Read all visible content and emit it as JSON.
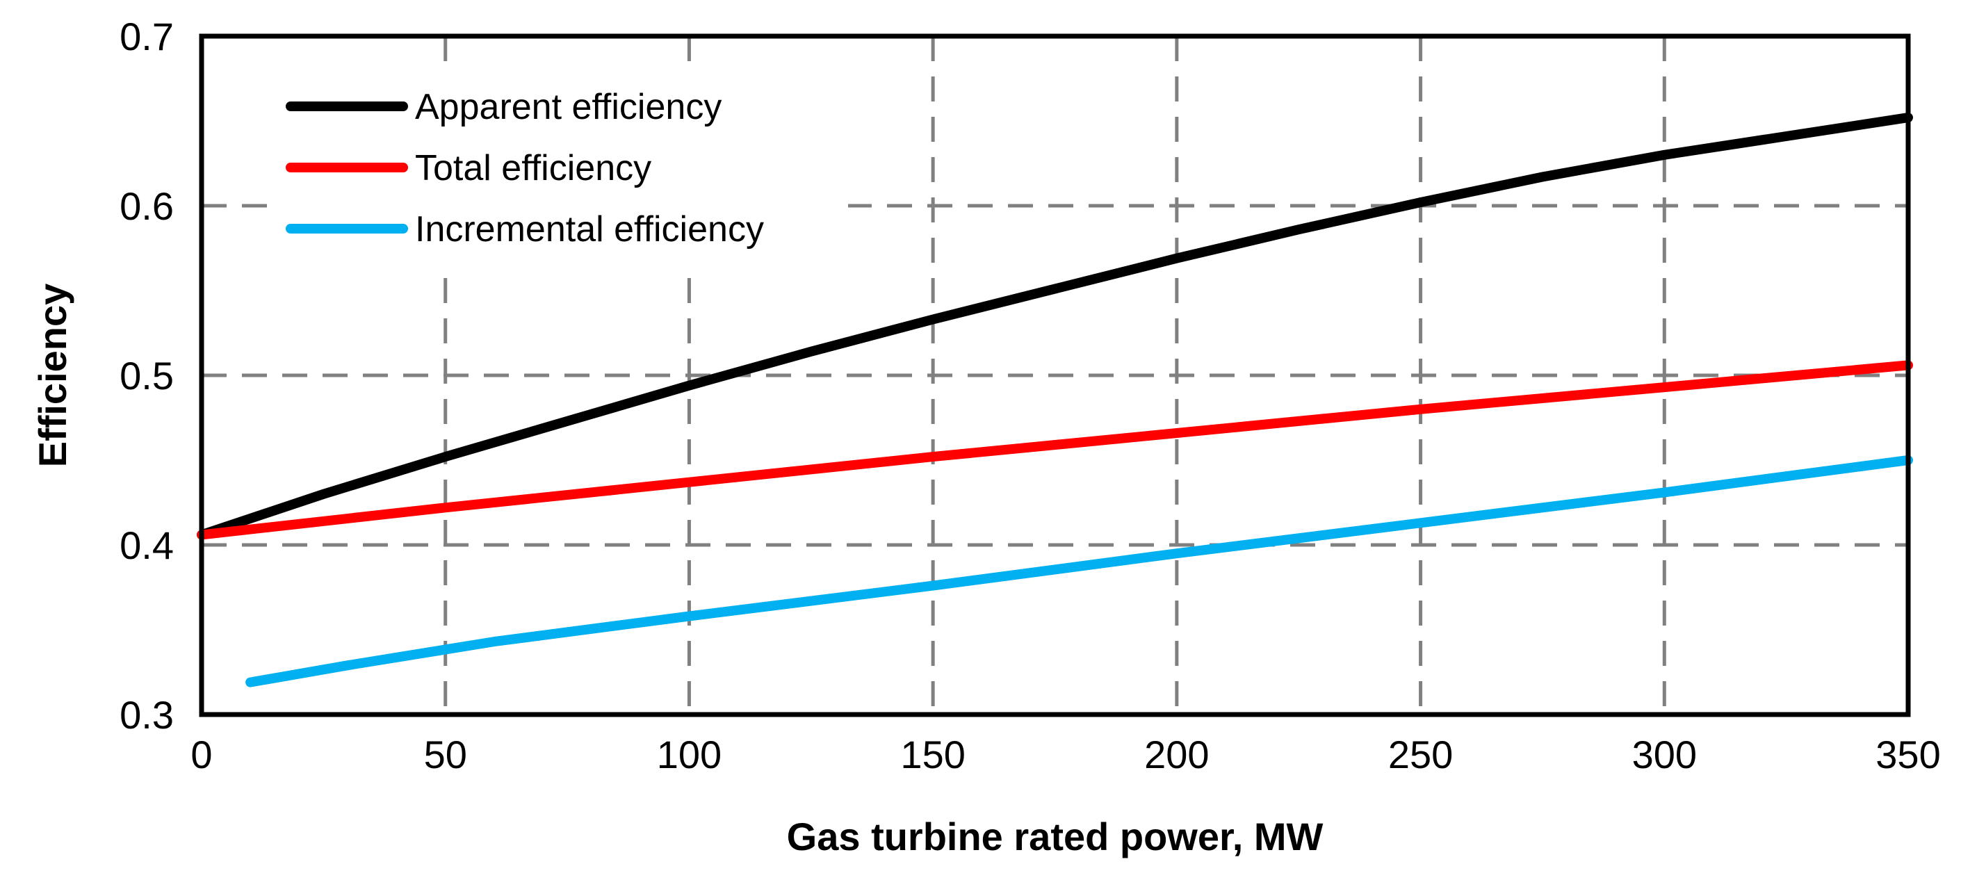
{
  "chart_data": {
    "type": "line",
    "title": "",
    "xlabel": "Gas turbine rated power, MW",
    "ylabel": "Efficiency",
    "xlim": [
      0,
      350
    ],
    "ylim": [
      0.3,
      0.7
    ],
    "x_ticks": [
      0,
      50,
      100,
      150,
      200,
      250,
      300,
      350
    ],
    "y_ticks": [
      0.3,
      0.4,
      0.5,
      0.6,
      0.7
    ],
    "x_tick_labels": [
      "0",
      "50",
      "100",
      "150",
      "200",
      "250",
      "300",
      "350"
    ],
    "y_tick_labels": [
      "0.3",
      "0.4",
      "0.5",
      "0.6",
      "0.7"
    ],
    "grid": "dashed",
    "legend_position": "top-left",
    "series": [
      {
        "name": "Apparent efficiency",
        "color": "#000000",
        "x": [
          0,
          25,
          50,
          75,
          100,
          125,
          150,
          175,
          200,
          225,
          250,
          275,
          300,
          325,
          350
        ],
        "y": [
          0.406,
          0.43,
          0.452,
          0.473,
          0.494,
          0.514,
          0.533,
          0.551,
          0.569,
          0.586,
          0.602,
          0.617,
          0.63,
          0.641,
          0.652
        ]
      },
      {
        "name": "Total efficiency",
        "color": "#ff0000",
        "x": [
          0,
          50,
          100,
          150,
          200,
          250,
          300,
          350
        ],
        "y": [
          0.406,
          0.422,
          0.437,
          0.452,
          0.466,
          0.48,
          0.493,
          0.506
        ]
      },
      {
        "name": "Incremental efficiency",
        "color": "#00b0f0",
        "x": [
          10,
          30,
          60,
          100,
          150,
          200,
          250,
          300,
          350
        ],
        "y": [
          0.319,
          0.329,
          0.343,
          0.358,
          0.376,
          0.395,
          0.413,
          0.431,
          0.45
        ]
      }
    ]
  }
}
